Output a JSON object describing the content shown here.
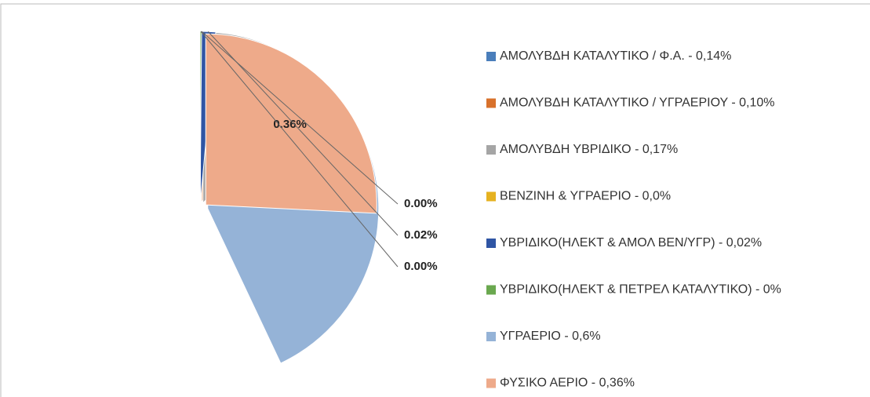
{
  "chart_data": {
    "type": "pie",
    "categories": [
      "ΑΜΟΛΥΒΔΗ ΚΑΤΑΛΥΤΙΚΟ / Φ.Α.  - 0,14%",
      "ΑΜΟΛΥΒΔΗ ΚΑΤΑΛΥΤΙΚΟ / ΥΓΡΑΕΡΙΟΥ  -  0,10%",
      "ΑΜΟΛΥΒΔΗ ΥΒΡΙΔΙΚΟ   - 0,17%",
      "ΒΕΝΖΙΝΗ & ΥΓΡΑΕΡΙΟ  - 0,0%",
      "ΥΒΡΙΔΙΚΟ(ΗΛΕΚΤ & ΑΜΟΛ ΒΕΝ/ΥΓΡ)   -  0,02%",
      "ΥΒΡΙΔΙΚΟ(ΗΛΕΚΤ & ΠΕΤΡΕΛ ΚΑΤΑΛΥΤΙΚΟ)  - 0%",
      "ΥΓΡΑΕΡΙΟ  - 0,6%",
      "ΦΥΣΙΚΟ ΑΕΡΙΟ   - 0,36%"
    ],
    "values": [
      0.14,
      0.1,
      0.17,
      0.004,
      0.02,
      0.002,
      0.6,
      0.36
    ],
    "value_labels": [
      "0.14%",
      "0.10%",
      "0.17%",
      "0.00%",
      "0.02%",
      "0.00%",
      "0.60%",
      "0.36%"
    ],
    "colors": [
      "#4a7ebb",
      "#d8712b",
      "#a5a5a5",
      "#e6b220",
      "#2f55a4",
      "#6aa84f",
      "#95b3d7",
      "#eeaa8a"
    ],
    "start_angle": 0,
    "direction": "clockwise",
    "legend": "right"
  }
}
